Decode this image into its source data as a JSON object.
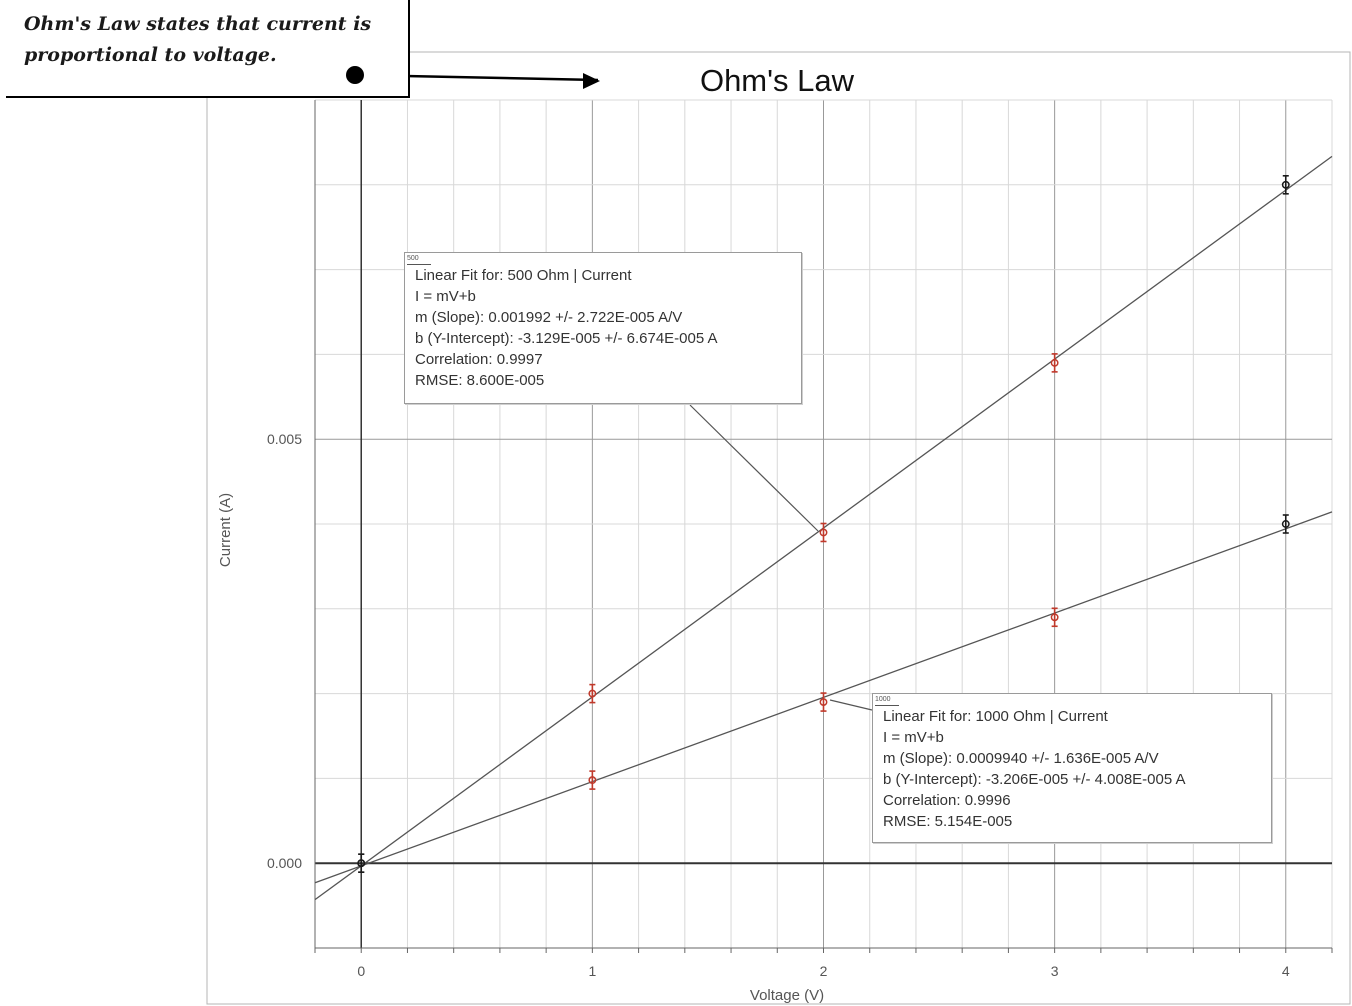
{
  "callout": {
    "line1": "Ohm's Law states that current is",
    "line2": "proportional to voltage."
  },
  "chart_data": {
    "type": "scatter",
    "title": "Ohm's Law",
    "xlabel": "Voltage (V)",
    "ylabel": "Current (A)",
    "xlim": [
      -0.2,
      4.2
    ],
    "ylim": [
      -0.001,
      0.009
    ],
    "x_ticks": [
      "0",
      "1",
      "2",
      "3",
      "4"
    ],
    "y_ticks": [
      "0.000",
      "0.005"
    ],
    "grid": true,
    "series": [
      {
        "name": "500 Ohm | Current",
        "x": [
          0,
          1,
          2,
          3,
          4
        ],
        "y": [
          0.0,
          0.002,
          0.0039,
          0.0059,
          0.008
        ],
        "fit": {
          "m": 0.001992,
          "b": -3.129e-05
        }
      },
      {
        "name": "1000 Ohm | Current",
        "x": [
          0,
          1,
          2,
          3,
          4
        ],
        "y": [
          0.0,
          0.00098,
          0.0019,
          0.0029,
          0.004
        ],
        "fit": {
          "m": 0.000994,
          "b": -3.206e-05
        }
      }
    ],
    "fits": [
      {
        "header": "Linear Fit for:  500 Ohm | Current",
        "equation": "I = mV+b",
        "slope": "m (Slope): 0.001992 +/- 2.722E-005 A/V",
        "intercept": "b (Y-Intercept): -3.129E-005 +/- 6.674E-005 A",
        "correlation": "Correlation: 0.9997",
        "rmse": "RMSE: 8.600E-005",
        "tag": "500"
      },
      {
        "header": "Linear Fit for:  1000 Ohm | Current",
        "equation": "I = mV+b",
        "slope": "m (Slope): 0.0009940 +/- 1.636E-005 A/V",
        "intercept": "b (Y-Intercept): -3.206E-005 +/- 4.008E-005 A",
        "correlation": "Correlation: 0.9996",
        "rmse": "RMSE: 5.154E-005",
        "tag": "1000"
      }
    ]
  },
  "colors": {
    "point_red": "#c0392b",
    "point_black": "#1a1a1a",
    "fit_line": "#555555",
    "grid_major": "#999999",
    "grid_minor": "#d8d8d8"
  }
}
